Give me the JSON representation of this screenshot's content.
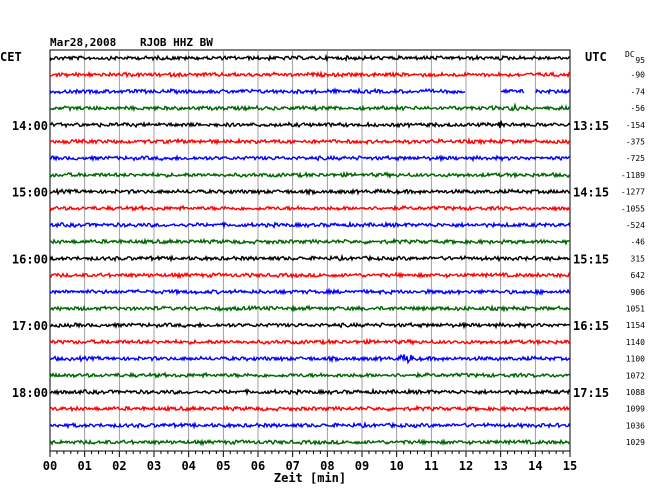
{
  "chart_data": {
    "type": "line",
    "title": "Mar28,2008",
    "station": "RJOB HHZ BW",
    "left_timezone": "CET",
    "right_timezone": "UTC",
    "dc_header": "DC",
    "xlabel": "Zeit [min]",
    "x_ticks": [
      "00",
      "01",
      "02",
      "03",
      "04",
      "05",
      "06",
      "07",
      "08",
      "09",
      "10",
      "11",
      "12",
      "13",
      "14",
      "15"
    ],
    "xlim": [
      0,
      15
    ],
    "grid": true,
    "trace_colors": [
      "#000000",
      "#ff0000",
      "#0000ff",
      "#006400"
    ],
    "left_hour_labels": [
      {
        "row": 4,
        "label": "14:00"
      },
      {
        "row": 8,
        "label": "15:00"
      },
      {
        "row": 12,
        "label": "16:00"
      },
      {
        "row": 16,
        "label": "17:00"
      },
      {
        "row": 20,
        "label": "18:00"
      }
    ],
    "right_hour_labels": [
      {
        "row": 4,
        "label": "13:15"
      },
      {
        "row": 8,
        "label": "14:15"
      },
      {
        "row": 12,
        "label": "15:15"
      },
      {
        "row": 16,
        "label": "16:15"
      },
      {
        "row": 20,
        "label": "17:15"
      }
    ],
    "dc_offsets": [
      "95",
      "-90",
      "-74",
      "-56",
      "-154",
      "-375",
      "-725",
      "-1189",
      "-1277",
      "-1055",
      "-524",
      "-46",
      "315",
      "642",
      "906",
      "1051",
      "1154",
      "1140",
      "1100",
      "1072",
      "1088",
      "1099",
      "1036",
      "1029"
    ],
    "events": [
      {
        "row": 4,
        "minute": 13.0,
        "note": "spike"
      },
      {
        "row": 18,
        "minute": 10.3,
        "note": "burst"
      },
      {
        "row": 3,
        "minute": 13.4,
        "note": "small event"
      }
    ],
    "data_gaps": [
      {
        "row": 2,
        "from_minute": 12.0,
        "to_minute": 13.0
      },
      {
        "row": 2,
        "from_minute": 13.7,
        "to_minute": 14.0
      }
    ]
  }
}
